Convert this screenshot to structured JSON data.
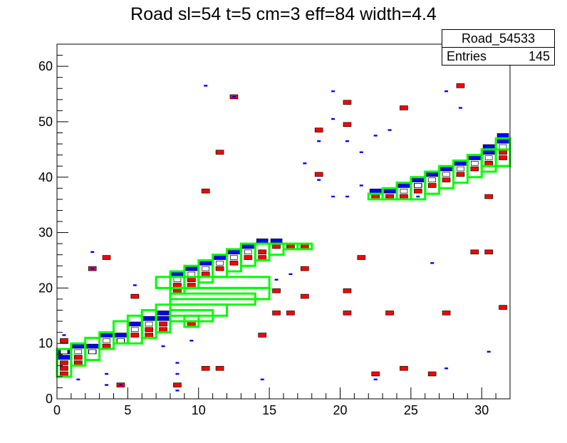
{
  "chart_data": {
    "type": "heatmap",
    "title": "Road sl=54 t=5 cm=3 eff=84 width=4.4",
    "xlim": [
      0,
      32
    ],
    "ylim": [
      0,
      64
    ],
    "x_ticks": [
      0,
      5,
      10,
      15,
      20,
      25,
      30
    ],
    "y_ticks": [
      0,
      10,
      20,
      30,
      40,
      50,
      60
    ],
    "xlabel": "",
    "ylabel": "",
    "stats": {
      "name": "Road_54533",
      "entries_label": "Entries",
      "entries_value": "145"
    },
    "colors": {
      "blue": "#0000ff",
      "red": "#ff0000",
      "green": "#00ff00",
      "frame": "#000000"
    },
    "blue_cells": [
      [
        0,
        7
      ],
      [
        0,
        8
      ],
      [
        1,
        9
      ],
      [
        2,
        9
      ],
      [
        3,
        11
      ],
      [
        4,
        11
      ],
      [
        5,
        13
      ],
      [
        6,
        14
      ],
      [
        7,
        15
      ],
      [
        7,
        14
      ],
      [
        8,
        22
      ],
      [
        9,
        23
      ],
      [
        10,
        24
      ],
      [
        11,
        25
      ],
      [
        12,
        26
      ],
      [
        13,
        27
      ],
      [
        14,
        28
      ],
      [
        15,
        28
      ],
      [
        22,
        37
      ],
      [
        23,
        37
      ],
      [
        24,
        38
      ],
      [
        25,
        39
      ],
      [
        26,
        40
      ],
      [
        27,
        41
      ],
      [
        28,
        42
      ],
      [
        29,
        43
      ],
      [
        30,
        44
      ],
      [
        30,
        45
      ],
      [
        31,
        47
      ],
      [
        31,
        46
      ]
    ],
    "red_cells": [
      [
        0,
        4
      ],
      [
        0,
        5
      ],
      [
        0,
        6
      ],
      [
        1,
        6
      ],
      [
        1,
        7
      ],
      [
        2,
        8
      ],
      [
        3,
        9
      ],
      [
        4,
        10
      ],
      [
        5,
        11
      ],
      [
        6,
        11
      ],
      [
        6,
        12
      ],
      [
        7,
        12
      ],
      [
        7,
        13
      ],
      [
        8,
        19
      ],
      [
        8,
        20
      ],
      [
        9,
        20
      ],
      [
        9,
        21
      ],
      [
        10,
        22
      ],
      [
        11,
        23
      ],
      [
        12,
        24
      ],
      [
        13,
        25
      ],
      [
        14,
        25
      ],
      [
        14,
        26
      ],
      [
        15,
        27
      ],
      [
        16,
        27
      ],
      [
        17,
        27
      ],
      [
        22,
        36
      ],
      [
        23,
        36
      ],
      [
        24,
        36
      ],
      [
        25,
        37
      ],
      [
        25,
        38
      ],
      [
        26,
        38
      ],
      [
        27,
        39
      ],
      [
        28,
        40
      ],
      [
        29,
        41
      ],
      [
        30,
        42
      ],
      [
        31,
        43
      ],
      [
        31,
        44
      ],
      [
        0,
        10
      ],
      [
        2,
        23
      ],
      [
        3,
        25
      ],
      [
        4,
        2
      ],
      [
        5,
        18
      ],
      [
        8,
        2
      ],
      [
        9,
        13
      ],
      [
        10,
        5
      ],
      [
        11,
        5
      ],
      [
        10,
        37
      ],
      [
        11,
        44
      ],
      [
        12,
        54
      ],
      [
        14,
        11
      ],
      [
        15,
        15
      ],
      [
        15,
        19
      ],
      [
        16,
        15
      ],
      [
        17,
        18
      ],
      [
        17,
        23
      ],
      [
        18,
        48
      ],
      [
        18,
        40
      ],
      [
        20,
        53
      ],
      [
        20,
        49
      ],
      [
        20,
        19
      ],
      [
        20,
        15
      ],
      [
        21,
        25
      ],
      [
        22,
        4
      ],
      [
        23,
        15
      ],
      [
        24,
        52
      ],
      [
        24,
        5
      ],
      [
        26,
        4
      ],
      [
        27,
        15
      ],
      [
        29,
        26
      ],
      [
        31,
        16
      ],
      [
        30,
        26
      ],
      [
        28,
        56
      ],
      [
        30,
        36
      ]
    ],
    "white_cells": [
      [
        0,
        8
      ],
      [
        1,
        8
      ],
      [
        2,
        8
      ],
      [
        3,
        10
      ],
      [
        4,
        10
      ],
      [
        5,
        12
      ],
      [
        6,
        13
      ],
      [
        8,
        21
      ],
      [
        9,
        22
      ],
      [
        10,
        23
      ],
      [
        11,
        24
      ],
      [
        12,
        25
      ],
      [
        13,
        26
      ],
      [
        24,
        37
      ],
      [
        25,
        38
      ],
      [
        26,
        39
      ],
      [
        27,
        40
      ],
      [
        28,
        41
      ],
      [
        29,
        42
      ],
      [
        30,
        43
      ],
      [
        31,
        45
      ]
    ],
    "scatter_blue": [
      [
        2,
        26
      ],
      [
        2,
        23
      ],
      [
        4,
        2
      ],
      [
        3,
        2
      ],
      [
        8,
        6
      ],
      [
        8,
        4
      ],
      [
        9,
        10
      ],
      [
        10,
        56
      ],
      [
        12,
        54
      ],
      [
        15,
        21
      ],
      [
        16,
        22
      ],
      [
        19,
        55
      ],
      [
        18,
        46
      ],
      [
        19,
        50
      ],
      [
        20,
        46
      ],
      [
        17,
        42
      ],
      [
        18,
        39
      ],
      [
        19,
        36
      ],
      [
        20,
        36
      ],
      [
        21,
        38
      ],
      [
        21,
        44
      ],
      [
        22,
        47
      ],
      [
        23,
        48
      ],
      [
        25,
        36
      ],
      [
        26,
        24
      ],
      [
        27,
        55
      ],
      [
        28,
        52
      ],
      [
        27,
        5
      ],
      [
        30,
        8
      ],
      [
        1,
        3
      ],
      [
        0,
        11
      ],
      [
        5,
        20
      ],
      [
        8,
        1
      ],
      [
        14,
        3
      ],
      [
        22,
        3
      ],
      [
        7,
        9
      ],
      [
        3,
        4
      ]
    ],
    "green_boxes": [
      [
        0,
        4,
        1,
        9
      ],
      [
        1,
        6,
        2,
        10
      ],
      [
        2,
        7,
        3,
        11
      ],
      [
        3,
        9,
        4,
        12
      ],
      [
        4,
        10,
        5,
        14
      ],
      [
        5,
        10,
        6,
        15
      ],
      [
        6,
        11,
        7,
        16
      ],
      [
        7,
        12,
        8,
        17
      ],
      [
        8,
        19,
        9,
        23
      ],
      [
        9,
        20,
        10,
        24
      ],
      [
        10,
        21,
        11,
        25
      ],
      [
        11,
        22,
        12,
        26
      ],
      [
        12,
        23,
        13,
        27
      ],
      [
        13,
        24,
        14,
        28
      ],
      [
        14,
        25,
        15,
        28
      ],
      [
        15,
        26,
        16,
        28
      ],
      [
        16,
        27,
        17,
        28
      ],
      [
        17,
        27,
        18,
        28
      ],
      [
        7,
        20,
        15,
        22
      ],
      [
        8,
        18,
        15,
        20
      ],
      [
        8,
        17,
        14,
        19
      ],
      [
        8,
        15,
        12,
        17
      ],
      [
        8,
        14,
        11,
        16
      ],
      [
        9,
        13,
        10,
        15
      ],
      [
        22,
        36,
        23,
        37
      ],
      [
        23,
        36,
        24,
        38
      ],
      [
        24,
        36,
        25,
        39
      ],
      [
        25,
        36,
        26,
        40
      ],
      [
        26,
        37,
        27,
        41
      ],
      [
        27,
        38,
        28,
        42
      ],
      [
        28,
        39,
        29,
        43
      ],
      [
        29,
        40,
        30,
        44
      ],
      [
        30,
        41,
        31,
        45
      ],
      [
        31,
        42,
        32,
        47
      ],
      [
        30,
        42,
        32,
        45
      ]
    ]
  }
}
